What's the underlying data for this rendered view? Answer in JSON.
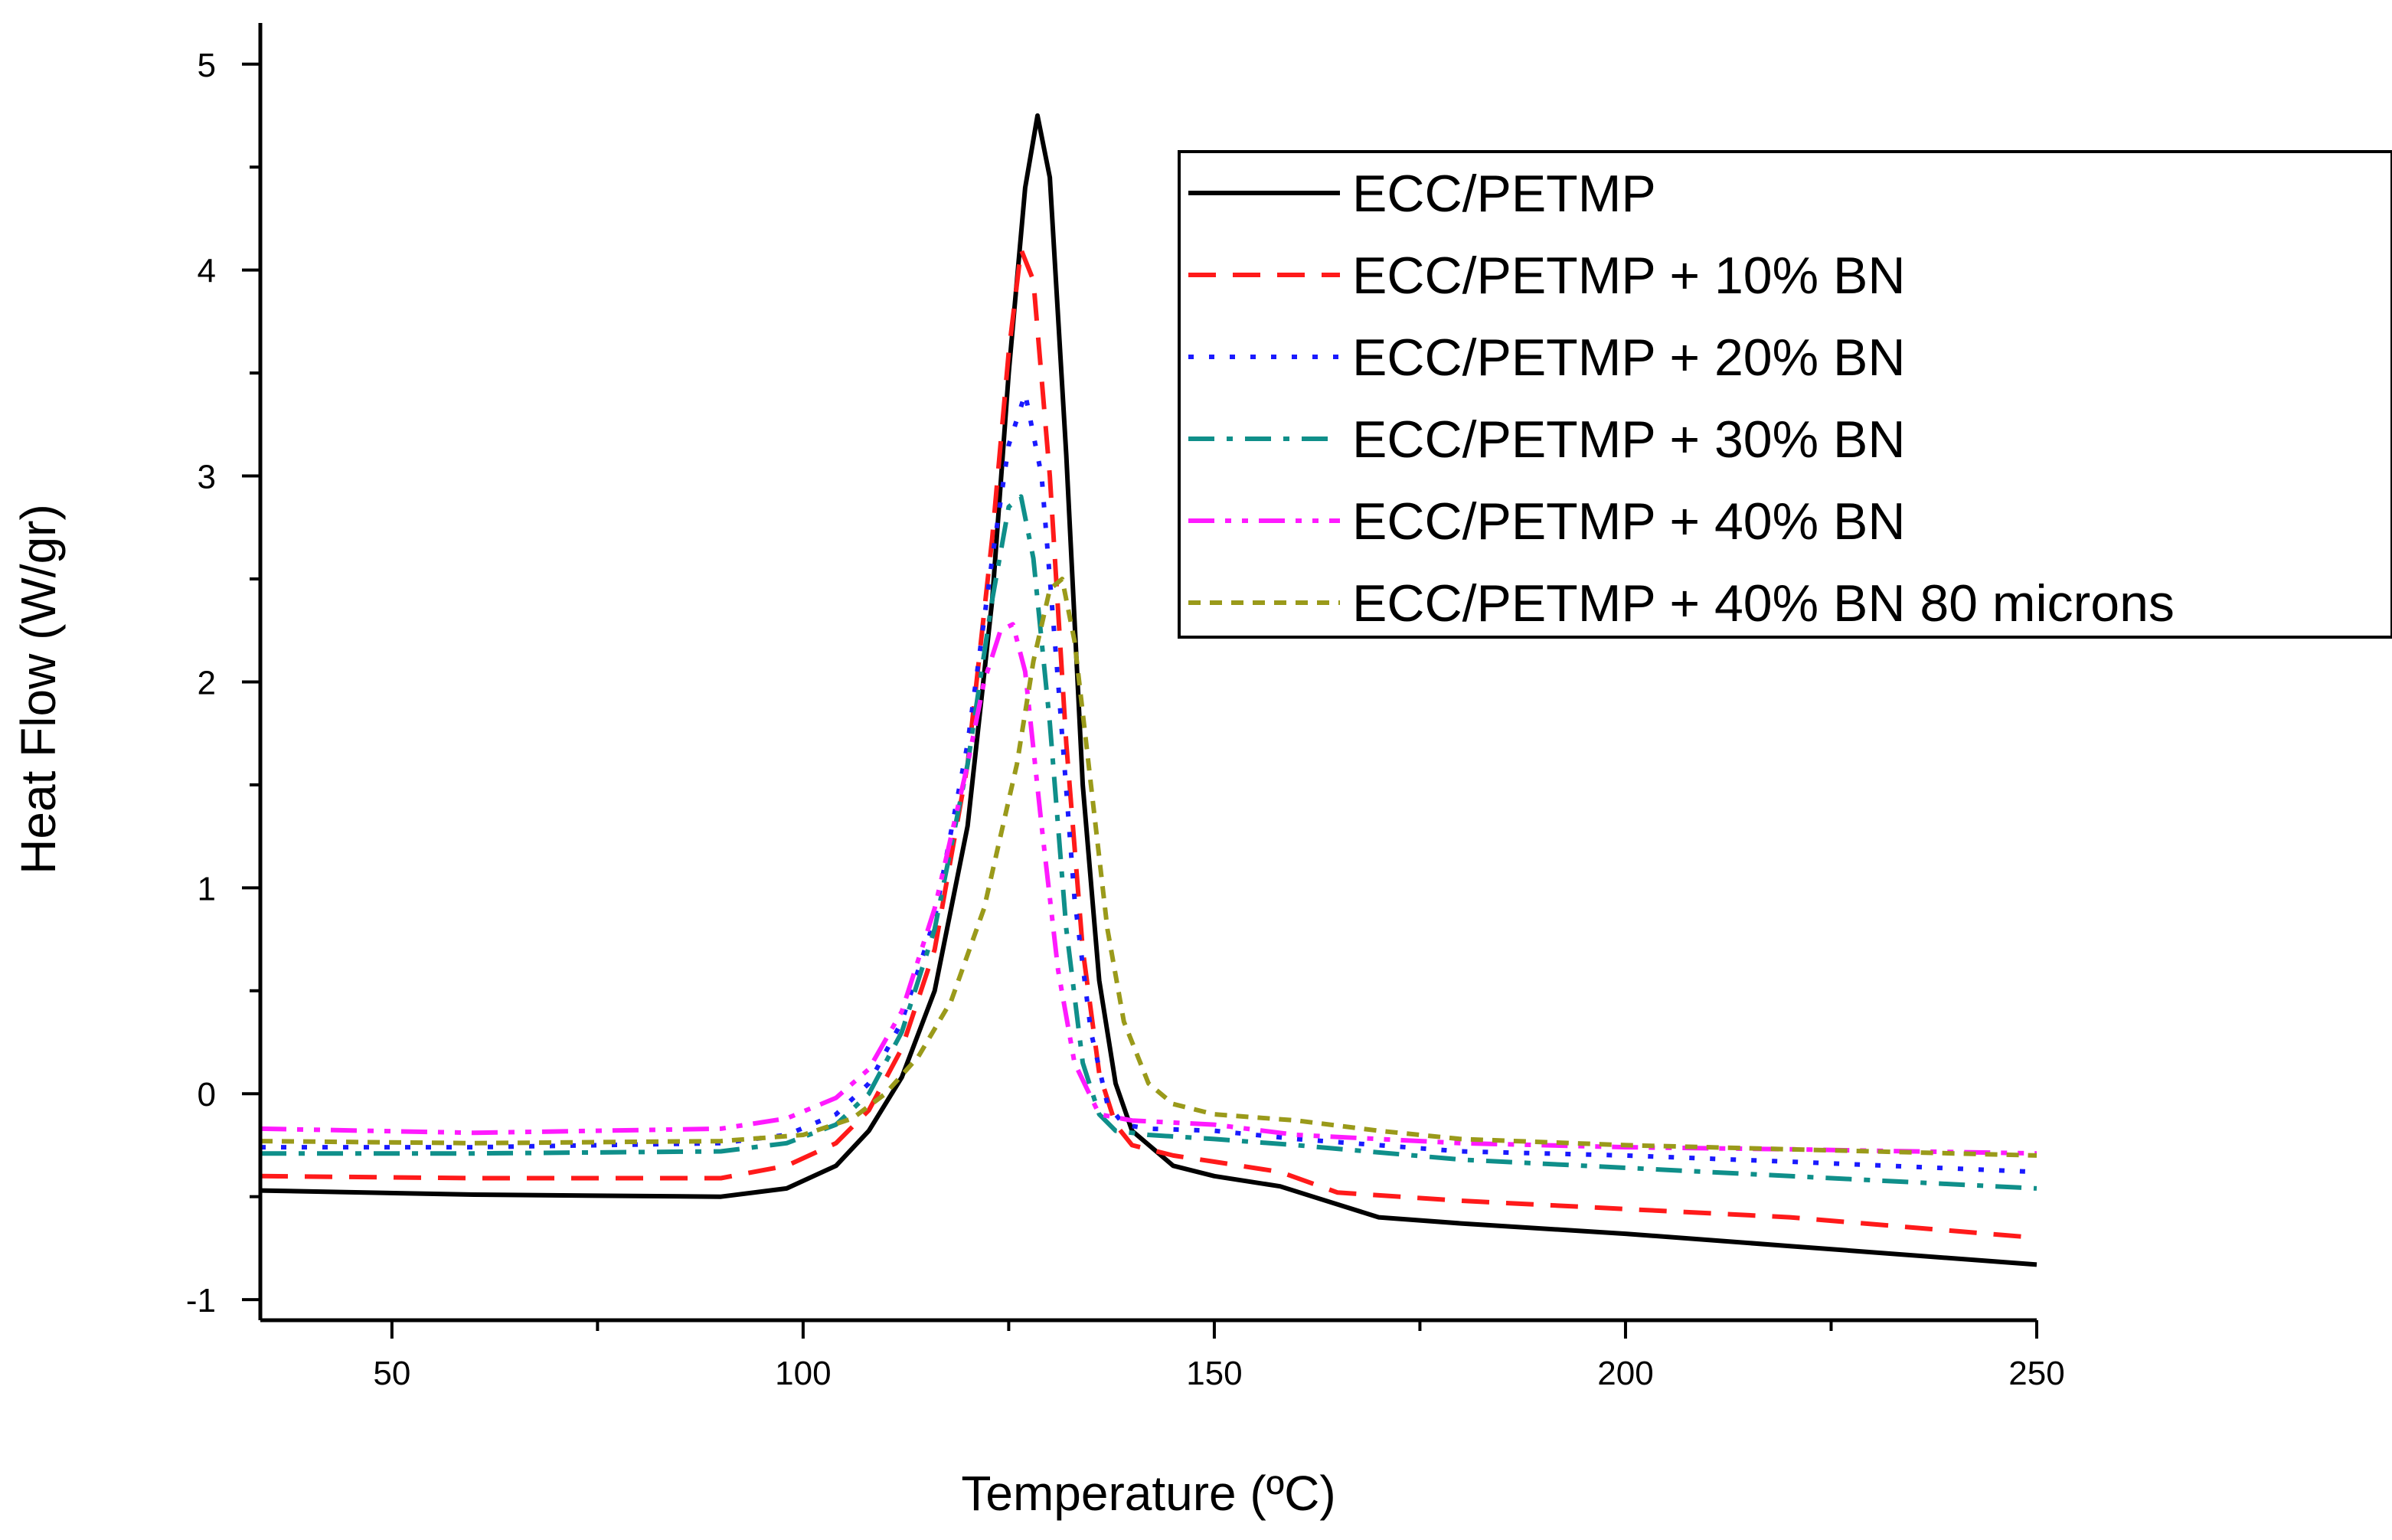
{
  "chart_data": {
    "type": "line",
    "title": "",
    "xlabel": "Temperature (ºC)",
    "ylabel": "Heat Flow (W/gr)",
    "xlim": [
      34,
      250
    ],
    "ylim": [
      -1.1,
      5.2
    ],
    "xticks": [
      50,
      100,
      150,
      200,
      250
    ],
    "xtick_labels": [
      "50",
      "100",
      "150",
      "200",
      "250"
    ],
    "yticks": [
      -1,
      0,
      1,
      2,
      3,
      4,
      5
    ],
    "ytick_labels": [
      "-1",
      "0",
      "1",
      "2",
      "3",
      "4",
      "5"
    ],
    "grid": false,
    "legend_position": "top-right",
    "series": [
      {
        "name": "ECC/PETMP",
        "color": "#000000",
        "dash": "solid",
        "x": [
          34,
          60,
          90,
          98,
          104,
          108,
          112,
          116,
          120,
          123,
          125,
          127,
          128.5,
          130,
          132,
          134,
          136,
          138,
          140,
          145,
          150,
          158,
          162,
          170,
          180,
          200,
          220,
          250
        ],
        "y": [
          -0.47,
          -0.49,
          -0.5,
          -0.46,
          -0.35,
          -0.18,
          0.08,
          0.5,
          1.3,
          2.4,
          3.5,
          4.4,
          4.75,
          4.45,
          3.1,
          1.5,
          0.55,
          0.05,
          -0.18,
          -0.35,
          -0.4,
          -0.45,
          -0.5,
          -0.6,
          -0.63,
          -0.68,
          -0.74,
          -0.83
        ]
      },
      {
        "name": "ECC/PETMP + 10% BN",
        "color": "#ff1a1a",
        "dash": "dashed",
        "x": [
          34,
          60,
          90,
          98,
          104,
          108,
          112,
          116,
          120,
          123,
          125,
          126.5,
          128,
          130,
          132,
          134,
          136,
          138,
          140,
          145,
          150,
          158,
          165,
          180,
          200,
          220,
          250
        ],
        "y": [
          -0.4,
          -0.41,
          -0.41,
          -0.35,
          -0.24,
          -0.08,
          0.22,
          0.7,
          1.6,
          2.7,
          3.6,
          4.1,
          3.95,
          3.0,
          1.7,
          0.7,
          0.1,
          -0.15,
          -0.25,
          -0.3,
          -0.33,
          -0.38,
          -0.48,
          -0.52,
          -0.56,
          -0.6,
          -0.7
        ]
      },
      {
        "name": "ECC/PETMP + 20% BN",
        "color": "#1a1aff",
        "dash": "dotted",
        "x": [
          34,
          60,
          90,
          98,
          104,
          108,
          112,
          116,
          120,
          123,
          125,
          127,
          129,
          131,
          133,
          135,
          137,
          139,
          142,
          150,
          160,
          180,
          200,
          220,
          250
        ],
        "y": [
          -0.26,
          -0.26,
          -0.24,
          -0.2,
          -0.1,
          0.05,
          0.35,
          0.85,
          1.7,
          2.6,
          3.15,
          3.4,
          3.0,
          2.0,
          0.95,
          0.3,
          -0.05,
          -0.15,
          -0.17,
          -0.18,
          -0.22,
          -0.28,
          -0.3,
          -0.33,
          -0.38
        ]
      },
      {
        "name": "ECC/PETMP + 30% BN",
        "color": "#0f8f8a",
        "dash": "dashdot",
        "x": [
          34,
          60,
          90,
          98,
          104,
          108,
          112,
          116,
          120,
          123,
          125,
          126.5,
          128,
          130,
          132,
          134,
          136,
          138,
          142,
          150,
          160,
          180,
          200,
          220,
          250
        ],
        "y": [
          -0.29,
          -0.29,
          -0.28,
          -0.24,
          -0.15,
          0.0,
          0.3,
          0.8,
          1.6,
          2.4,
          2.85,
          2.9,
          2.6,
          1.8,
          0.8,
          0.15,
          -0.1,
          -0.18,
          -0.2,
          -0.22,
          -0.25,
          -0.32,
          -0.36,
          -0.4,
          -0.46
        ]
      },
      {
        "name": "ECC/PETMP + 40% BN",
        "color": "#ff1aff",
        "dash": "dashdotdot",
        "x": [
          34,
          60,
          90,
          98,
          104,
          108,
          112,
          116,
          120,
          122,
          124,
          125.5,
          127,
          129,
          131,
          133,
          136,
          140,
          150,
          160,
          180,
          200,
          220,
          250
        ],
        "y": [
          -0.17,
          -0.19,
          -0.17,
          -0.12,
          -0.02,
          0.12,
          0.4,
          0.9,
          1.6,
          2.0,
          2.25,
          2.28,
          2.05,
          1.3,
          0.6,
          0.15,
          -0.1,
          -0.13,
          -0.15,
          -0.2,
          -0.24,
          -0.26,
          -0.27,
          -0.29
        ]
      },
      {
        "name": "ECC/PETMP + 40% BN 80 microns",
        "color": "#9a9a1a",
        "dash": "shortdash",
        "x": [
          34,
          60,
          90,
          100,
          106,
          110,
          114,
          118,
          122,
          126,
          128,
          130,
          131.5,
          133,
          135,
          137,
          139,
          142,
          145,
          150,
          160,
          170,
          180,
          200,
          220,
          250
        ],
        "y": [
          -0.23,
          -0.24,
          -0.23,
          -0.2,
          -0.12,
          0.0,
          0.18,
          0.45,
          0.9,
          1.6,
          2.1,
          2.45,
          2.5,
          2.2,
          1.5,
          0.8,
          0.35,
          0.05,
          -0.05,
          -0.1,
          -0.13,
          -0.18,
          -0.22,
          -0.25,
          -0.27,
          -0.3
        ]
      }
    ]
  }
}
